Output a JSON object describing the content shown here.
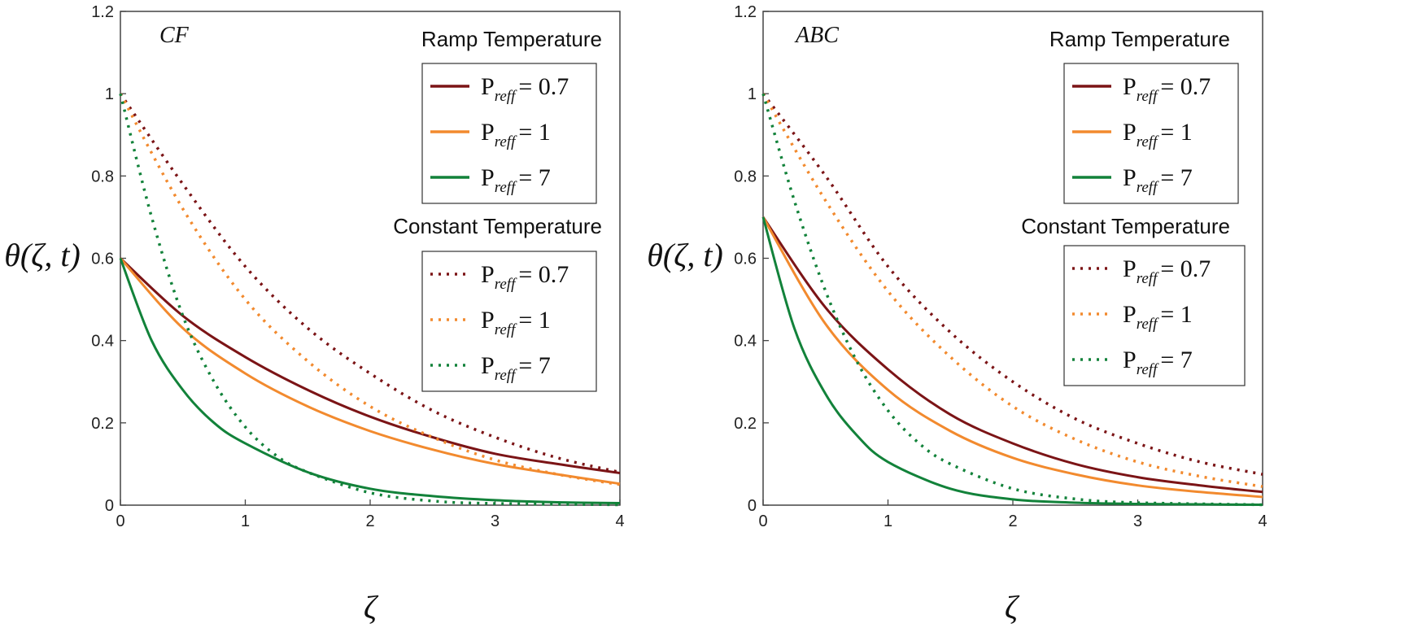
{
  "chart_data": [
    {
      "type": "line",
      "panel_label": "CF",
      "xlabel": "ζ",
      "ylabel": "θ(ζ, t)",
      "xlim": [
        0,
        4
      ],
      "ylim": [
        0,
        1.2
      ],
      "xticks": [
        "0",
        "1",
        "2",
        "3",
        "4"
      ],
      "yticks": [
        "0",
        "0.2",
        "0.4",
        "0.6",
        "0.8",
        "1",
        "1.2"
      ],
      "grid": false,
      "legend_groups": [
        {
          "title": "Ramp Temperature",
          "style": "solid",
          "entries": [
            {
              "prefix": "P",
              "sub": "reff",
              "value": "= 0.7",
              "color": "#7B1416"
            },
            {
              "prefix": "P",
              "sub": "reff",
              "value": "= 1",
              "color": "#F28A2E"
            },
            {
              "prefix": "P",
              "sub": "reff",
              "value": "= 7",
              "color": "#12823A"
            }
          ]
        },
        {
          "title": "Constant Temperature",
          "style": "dotted",
          "entries": [
            {
              "prefix": "P",
              "sub": "reff",
              "value": "= 0.7",
              "color": "#7B1416"
            },
            {
              "prefix": "P",
              "sub": "reff",
              "value": "= 1",
              "color": "#F28A2E"
            },
            {
              "prefix": "P",
              "sub": "reff",
              "value": "= 7",
              "color": "#12823A"
            }
          ]
        }
      ],
      "series": [
        {
          "group": "ramp",
          "color": "#7B1416",
          "style": "solid",
          "x": [
            0,
            0.5,
            1,
            1.5,
            2,
            2.5,
            3,
            3.5,
            4
          ],
          "y": [
            0.6,
            0.46,
            0.36,
            0.28,
            0.215,
            0.165,
            0.125,
            0.1,
            0.078
          ]
        },
        {
          "group": "ramp",
          "color": "#F28A2E",
          "style": "solid",
          "x": [
            0,
            0.5,
            1,
            1.5,
            2,
            2.5,
            3,
            3.5,
            4
          ],
          "y": [
            0.6,
            0.43,
            0.32,
            0.24,
            0.18,
            0.135,
            0.1,
            0.075,
            0.052
          ]
        },
        {
          "group": "ramp",
          "color": "#12823A",
          "style": "solid",
          "x": [
            0,
            0.25,
            0.5,
            0.75,
            1,
            1.5,
            2,
            2.5,
            3,
            3.5,
            4
          ],
          "y": [
            0.6,
            0.4,
            0.28,
            0.2,
            0.15,
            0.08,
            0.04,
            0.022,
            0.012,
            0.007,
            0.005
          ]
        },
        {
          "group": "constant",
          "color": "#7B1416",
          "style": "dotted",
          "x": [
            0,
            0.5,
            1,
            1.5,
            2,
            2.5,
            3,
            3.5,
            4
          ],
          "y": [
            1.0,
            0.78,
            0.58,
            0.43,
            0.32,
            0.23,
            0.165,
            0.115,
            0.08
          ]
        },
        {
          "group": "constant",
          "color": "#F28A2E",
          "style": "dotted",
          "x": [
            0,
            0.5,
            1,
            1.5,
            2,
            2.5,
            3,
            3.5,
            4
          ],
          "y": [
            1.0,
            0.72,
            0.5,
            0.35,
            0.24,
            0.165,
            0.11,
            0.075,
            0.05
          ]
        },
        {
          "group": "constant",
          "color": "#12823A",
          "style": "dotted",
          "x": [
            0,
            0.25,
            0.5,
            0.75,
            1,
            1.25,
            1.5,
            2,
            2.5,
            3,
            4
          ],
          "y": [
            1.0,
            0.7,
            0.46,
            0.3,
            0.19,
            0.12,
            0.08,
            0.03,
            0.01,
            0.004,
            0.001
          ]
        }
      ]
    },
    {
      "type": "line",
      "panel_label": "ABC",
      "xlabel": "ζ",
      "ylabel": "θ(ζ, t)",
      "xlim": [
        0,
        4
      ],
      "ylim": [
        0,
        1.2
      ],
      "xticks": [
        "0",
        "1",
        "2",
        "3",
        "4"
      ],
      "yticks": [
        "0",
        "0.2",
        "0.4",
        "0.6",
        "0.8",
        "1",
        "1.2"
      ],
      "grid": false,
      "legend_groups": [
        {
          "title": "Ramp Temperature",
          "style": "solid",
          "entries": [
            {
              "prefix": "P",
              "sub": "reff",
              "value": "= 0.7",
              "color": "#7B1416"
            },
            {
              "prefix": "P",
              "sub": "reff",
              "value": "= 1",
              "color": "#F28A2E"
            },
            {
              "prefix": "P",
              "sub": "reff",
              "value": "= 7",
              "color": "#12823A"
            }
          ]
        },
        {
          "title": "Constant Temperature",
          "style": "dotted",
          "entries": [
            {
              "prefix": "P",
              "sub": "reff",
              "value": "= 0.7",
              "color": "#7B1416"
            },
            {
              "prefix": "P",
              "sub": "reff",
              "value": "= 1",
              "color": "#F28A2E"
            },
            {
              "prefix": "P",
              "sub": "reff",
              "value": "= 7",
              "color": "#12823A"
            }
          ]
        }
      ],
      "series": [
        {
          "group": "ramp",
          "color": "#7B1416",
          "style": "solid",
          "x": [
            0,
            0.5,
            1,
            1.5,
            2,
            2.5,
            3,
            3.5,
            4
          ],
          "y": [
            0.7,
            0.48,
            0.33,
            0.22,
            0.15,
            0.1,
            0.068,
            0.048,
            0.032
          ]
        },
        {
          "group": "ramp",
          "color": "#F28A2E",
          "style": "solid",
          "x": [
            0,
            0.5,
            1,
            1.5,
            2,
            2.5,
            3,
            3.5,
            4
          ],
          "y": [
            0.7,
            0.44,
            0.28,
            0.18,
            0.115,
            0.075,
            0.048,
            0.032,
            0.02
          ]
        },
        {
          "group": "ramp",
          "color": "#12823A",
          "style": "solid",
          "x": [
            0,
            0.25,
            0.5,
            0.75,
            1,
            1.5,
            2,
            2.5,
            3,
            3.5,
            4
          ],
          "y": [
            0.7,
            0.43,
            0.27,
            0.17,
            0.105,
            0.04,
            0.014,
            0.006,
            0.003,
            0.002,
            0.001
          ]
        },
        {
          "group": "constant",
          "color": "#7B1416",
          "style": "dotted",
          "x": [
            0,
            0.5,
            1,
            1.5,
            2,
            2.5,
            3,
            3.5,
            4
          ],
          "y": [
            1.0,
            0.8,
            0.58,
            0.42,
            0.3,
            0.21,
            0.15,
            0.105,
            0.075
          ]
        },
        {
          "group": "constant",
          "color": "#F28A2E",
          "style": "dotted",
          "x": [
            0,
            0.5,
            1,
            1.5,
            2,
            2.5,
            3,
            3.5,
            4
          ],
          "y": [
            1.0,
            0.74,
            0.52,
            0.36,
            0.24,
            0.16,
            0.105,
            0.07,
            0.045
          ]
        },
        {
          "group": "constant",
          "color": "#12823A",
          "style": "dotted",
          "x": [
            0,
            0.25,
            0.5,
            0.75,
            1,
            1.25,
            1.5,
            2,
            2.5,
            3,
            4
          ],
          "y": [
            1.0,
            0.74,
            0.52,
            0.35,
            0.23,
            0.15,
            0.1,
            0.04,
            0.015,
            0.006,
            0.001
          ]
        }
      ]
    }
  ]
}
